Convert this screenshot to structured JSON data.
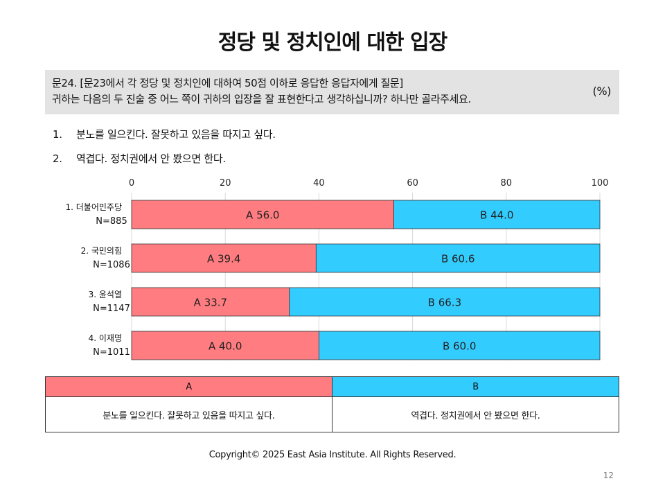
{
  "title": "정당 및 정치인에 대한 입장",
  "question": {
    "line1": "문24. [문23에서 각 정당 및 정치인에 대하여 50점 이하로 응답한 응답자에게 질문]",
    "line2": "귀하는 다음의 두 진술 중 어느 쪽이 귀하의 입장을 잘 표현한다고 생각하십니까? 하나만 골라주세요.",
    "unit": "(%)"
  },
  "options": [
    {
      "num": "1.",
      "text": "분노를 일으킨다. 잘못하고 있음을 따지고 싶다."
    },
    {
      "num": "2.",
      "text": "역겹다. 정치권에서 안 봤으면 한다."
    }
  ],
  "chart_data": {
    "type": "bar",
    "orientation": "horizontal",
    "stacked": true,
    "categories": [
      {
        "line1": "1. 더불어민주당",
        "line2": "N=885"
      },
      {
        "line1": "2. 국민의힘",
        "line2": "N=1086"
      },
      {
        "line1": "3. 윤석열",
        "line2": "N=1147"
      },
      {
        "line1": "4. 이재명",
        "line2": "N=1011"
      }
    ],
    "series": [
      {
        "prefix": "A",
        "values": [
          56.0,
          39.4,
          33.7,
          40.0
        ],
        "color": "#ff7c80"
      },
      {
        "prefix": "B",
        "values": [
          44.0,
          60.6,
          66.3,
          60.0
        ],
        "color": "#33ccff"
      }
    ],
    "xlim": [
      0,
      100
    ],
    "xticks": [
      0,
      20,
      40,
      60,
      80,
      100
    ],
    "axis_position": "top",
    "grid": true
  },
  "legend": {
    "headerA": "A",
    "headerB": "B",
    "descA": "분노를 일으킨다. 잘못하고 있음을 따지고 싶다.",
    "descB": "역겹다. 정치권에서 안 봤으면 한다."
  },
  "copyright": "Copyright© 2025 East Asia Institute. All Rights Reserved.",
  "page_number": "12"
}
